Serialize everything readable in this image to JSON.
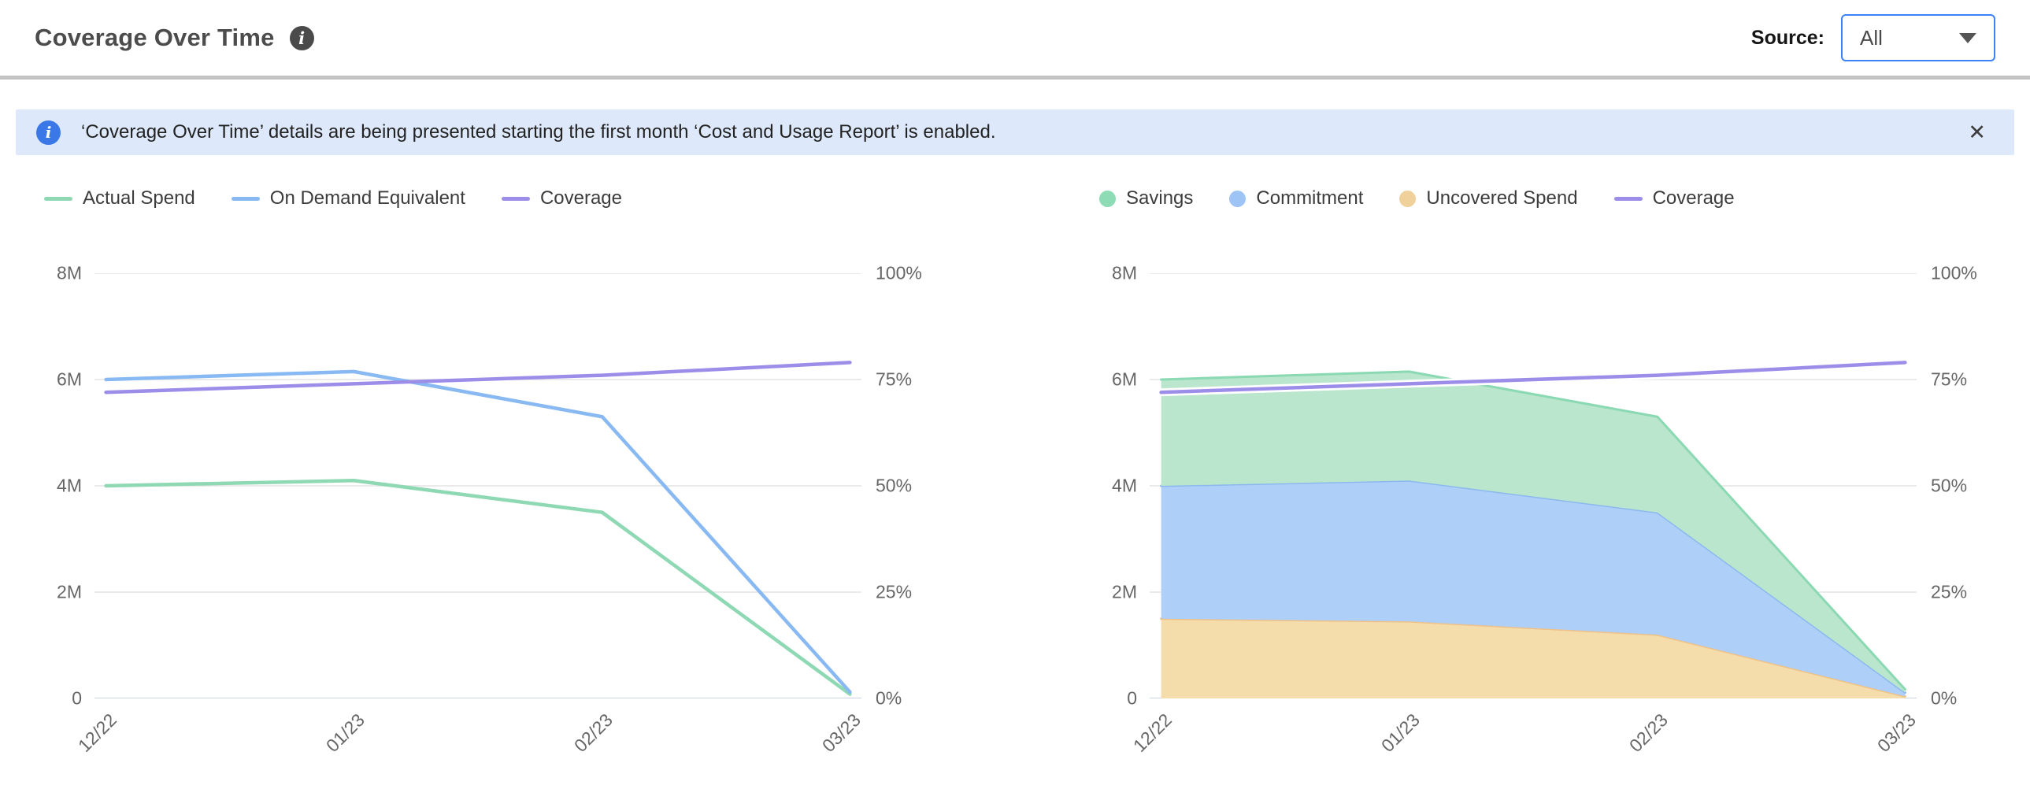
{
  "header": {
    "title": "Coverage Over Time",
    "info_glyph": "i",
    "source_label": "Source:",
    "source_value": "All"
  },
  "banner": {
    "info_glyph": "i",
    "text": "‘Coverage Over Time’ details are being presented starting the first month ‘Cost and Usage Report’ is enabled.",
    "close_glyph": "✕"
  },
  "ui_colors": {
    "accent_blue": "#3b82f6",
    "banner_bg": "#dde9fb",
    "banner_icon": "#3b78e7",
    "divider": "#c3c3c3",
    "grid_line": "#e4e4e4",
    "axis_line": "#c9d3ea",
    "axis_text": "#666666",
    "title_text": "#4c4c4c"
  },
  "chart_data": [
    {
      "type": "line",
      "x": [
        "12/22",
        "01/23",
        "02/23",
        "03/23"
      ],
      "x_label_rotation": -45,
      "left_axis": {
        "ticks": [
          "8M",
          "6M",
          "4M",
          "2M",
          "0"
        ],
        "min": 0,
        "max": 8000000
      },
      "right_axis": {
        "ticks": [
          "100%",
          "75%",
          "50%",
          "25%",
          "0%"
        ],
        "min": 0,
        "max": 100
      },
      "grid": true,
      "legend_position": "top-left",
      "legend": [
        {
          "label": "Actual Spend",
          "swatch": "line",
          "color": "#8ed9b4"
        },
        {
          "label": "On Demand Equivalent",
          "swatch": "line",
          "color": "#89b9f2"
        },
        {
          "label": "Coverage",
          "swatch": "line",
          "color": "#9c8de9"
        }
      ],
      "series": [
        {
          "name": "Actual Spend",
          "kind": "line",
          "axis": "left",
          "color": "#8ed9b4",
          "values": [
            4000000,
            4100000,
            3500000,
            80000
          ]
        },
        {
          "name": "On Demand Equivalent",
          "kind": "line",
          "axis": "left",
          "color": "#89b9f2",
          "values": [
            6000000,
            6150000,
            5300000,
            120000
          ]
        },
        {
          "name": "Coverage",
          "kind": "line",
          "axis": "right",
          "unit": "%",
          "color": "#9c8de9",
          "values": [
            72,
            74,
            76,
            79
          ]
        }
      ]
    },
    {
      "type": "area",
      "x": [
        "12/22",
        "01/23",
        "02/23",
        "03/23"
      ],
      "x_label_rotation": -45,
      "left_axis": {
        "ticks": [
          "8M",
          "6M",
          "4M",
          "2M",
          "0"
        ],
        "min": 0,
        "max": 8000000
      },
      "right_axis": {
        "ticks": [
          "100%",
          "75%",
          "50%",
          "25%",
          "0%"
        ],
        "min": 0,
        "max": 100
      },
      "grid": true,
      "legend_position": "top-left",
      "legend": [
        {
          "label": "Savings",
          "swatch": "dot",
          "color": "#8edcb5"
        },
        {
          "label": "Commitment",
          "swatch": "dot",
          "color": "#9ec4f5"
        },
        {
          "label": "Uncovered Spend",
          "swatch": "dot",
          "color": "#f0d09b"
        },
        {
          "label": "Coverage",
          "swatch": "line",
          "color": "#9c8de9"
        }
      ],
      "series": [
        {
          "name": "Uncovered Spend",
          "kind": "area",
          "stack": "total",
          "axis": "left",
          "fill": "#f5dcab",
          "edge": "#eec188",
          "values": [
            1500000,
            1450000,
            1200000,
            40000
          ]
        },
        {
          "name": "Commitment",
          "kind": "area",
          "stack": "total",
          "axis": "left",
          "fill": "#aed0f8",
          "edge": "#8cb8ef",
          "values": [
            2500000,
            2650000,
            2300000,
            70000
          ]
        },
        {
          "name": "Savings",
          "kind": "area",
          "stack": "total",
          "axis": "left",
          "fill": "#b9e6cd",
          "edge": "#8bd9b2",
          "values": [
            2000000,
            2050000,
            1800000,
            60000
          ]
        },
        {
          "name": "Coverage",
          "kind": "line",
          "axis": "right",
          "unit": "%",
          "color": "#9c8de9",
          "halo": "#ffffff",
          "values": [
            72,
            74,
            76,
            79
          ]
        }
      ]
    }
  ]
}
